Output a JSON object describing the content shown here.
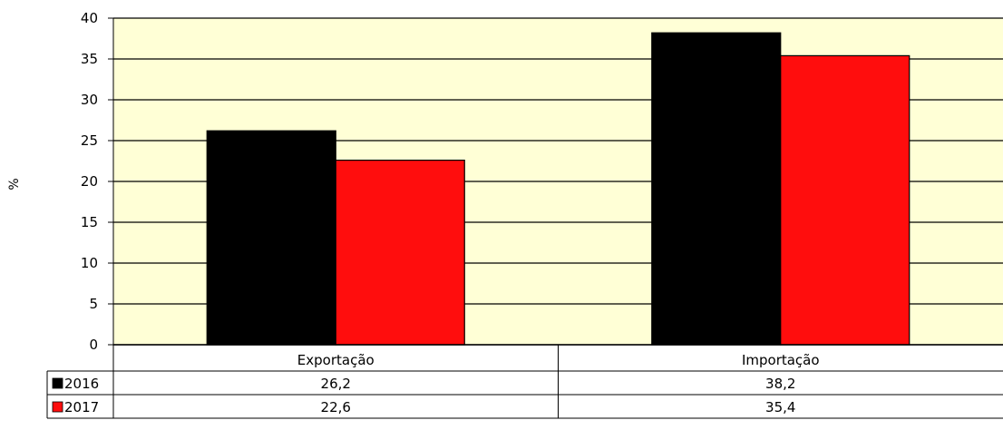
{
  "chart_data": {
    "type": "bar",
    "categories": [
      "Exportação",
      "Importação"
    ],
    "series": [
      {
        "name": "2016",
        "values": [
          26.2,
          38.2
        ],
        "labels": [
          "26,2",
          "38,2"
        ],
        "color": "#000000"
      },
      {
        "name": "2017",
        "values": [
          22.6,
          35.4
        ],
        "labels": [
          "22,6",
          "35,4"
        ],
        "color": "#ff0d0d"
      }
    ],
    "ylabel": "%",
    "ylim": [
      0,
      40
    ],
    "yticks": [
      0,
      5,
      10,
      15,
      20,
      25,
      30,
      35,
      40
    ],
    "grid": true,
    "legend": "data-table",
    "plot_background": "#ffffd6"
  }
}
